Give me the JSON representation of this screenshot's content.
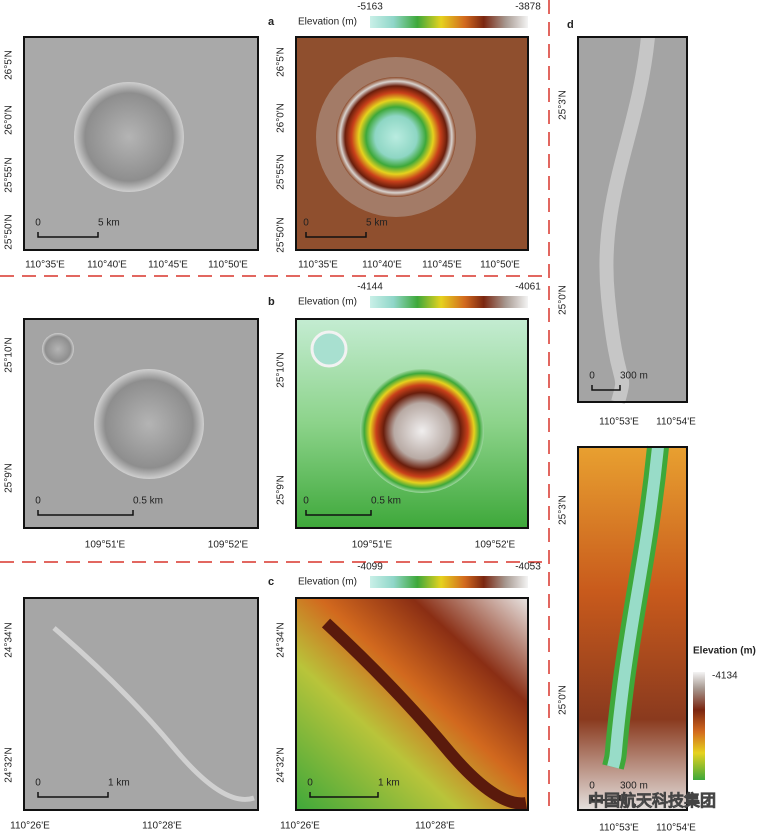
{
  "panels": [
    {
      "label": "a",
      "elevation_title": "Elevation (m)",
      "elevation_min": -5163,
      "elevation_max": -3878,
      "lat_ticks": [
        "26°5'N",
        "26°0'N",
        "25°55'N",
        "25°50'N"
      ],
      "lon_ticks": [
        "110°35'E",
        "110°40'E",
        "110°45'E",
        "110°50'E"
      ],
      "scale_zero": "0",
      "scale_length": "5 km"
    },
    {
      "label": "b",
      "elevation_title": "Elevation (m)",
      "elevation_min": -4144,
      "elevation_max": -4061,
      "lat_ticks": [
        "25°10'N",
        "25°9'N"
      ],
      "lon_ticks": [
        "109°51'E",
        "109°52'E"
      ],
      "scale_zero": "0",
      "scale_length": "0.5 km"
    },
    {
      "label": "c",
      "elevation_title": "Elevation (m)",
      "elevation_min": -4099,
      "elevation_max": -4053,
      "lat_ticks": [
        "24°34'N",
        "24°32'N"
      ],
      "lon_ticks": [
        "110°26'E",
        "110°28'E"
      ],
      "scale_zero": "0",
      "scale_length": "1 km"
    }
  ],
  "panel_d": {
    "label": "d",
    "elevation_title": "Elevation (m)",
    "elevation_max": -4134,
    "lat_ticks": [
      "25°3'N",
      "25°0'N"
    ],
    "lon_ticks": [
      "110°53'E",
      "110°54'E"
    ],
    "scale_zero": "0",
    "scale_length": "300 m"
  },
  "watermark": "中国航天科技集团"
}
